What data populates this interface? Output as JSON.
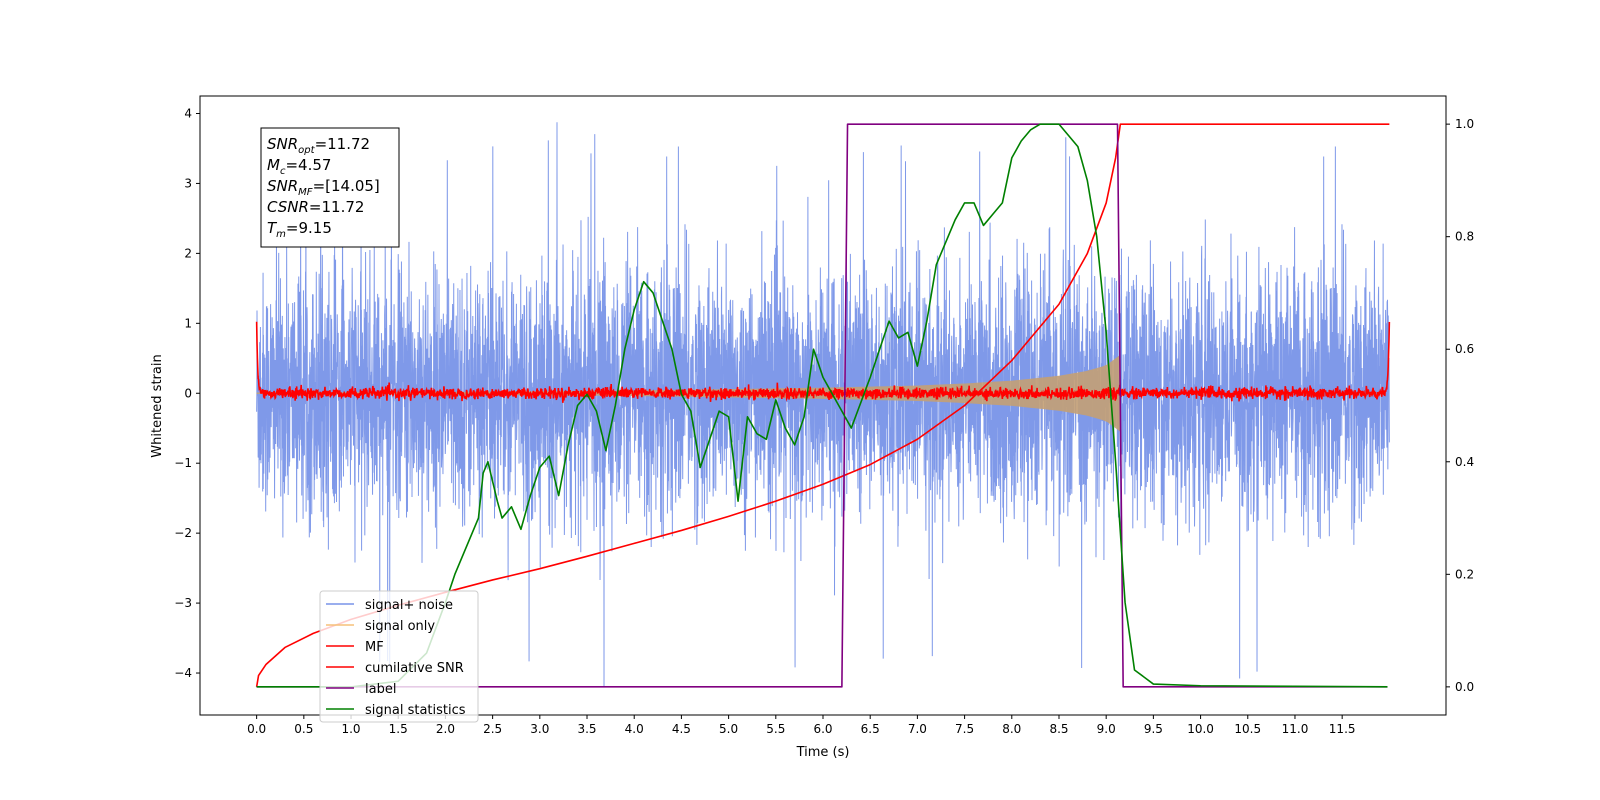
{
  "chart_data": {
    "type": "line",
    "xlabel": "Time (s)",
    "ylabel": "Whitened strain",
    "xlim": [
      -0.6,
      12.6
    ],
    "ylim": [
      -4.6,
      4.25
    ],
    "y2lim": [
      -0.05,
      1.05
    ],
    "x_ticks": [
      "0.0",
      "0.5",
      "1.0",
      "1.5",
      "2.0",
      "2.5",
      "3.0",
      "3.5",
      "4.0",
      "4.5",
      "5.0",
      "5.5",
      "6.0",
      "6.5",
      "7.0",
      "7.5",
      "8.0",
      "8.5",
      "9.0",
      "9.5",
      "10.0",
      "10.5",
      "11.0",
      "11.5"
    ],
    "x_tick_values": [
      0.0,
      0.5,
      1.0,
      1.5,
      2.0,
      2.5,
      3.0,
      3.5,
      4.0,
      4.5,
      5.0,
      5.5,
      6.0,
      6.5,
      7.0,
      7.5,
      8.0,
      8.5,
      9.0,
      9.5,
      10.0,
      10.5,
      11.0,
      11.5
    ],
    "y_ticks": [
      "4",
      "3",
      "2",
      "1",
      "0",
      "−1",
      "−2",
      "−3",
      "−4"
    ],
    "y_tick_values": [
      4,
      3,
      2,
      1,
      0,
      -1,
      -2,
      -3,
      -4
    ],
    "y2_ticks": [
      "1.0",
      "0.8",
      "0.6",
      "0.4",
      "0.2",
      "0.0"
    ],
    "y2_tick_values": [
      1.0,
      0.8,
      0.6,
      0.4,
      0.2,
      0.0
    ],
    "legend": [
      {
        "name": "signal+ noise",
        "color": "#7893e8"
      },
      {
        "name": "signal only",
        "color": "#f5c07a"
      },
      {
        "name": "MF",
        "color": "#ff0000"
      },
      {
        "name": "cumilative SNR",
        "color": "#ff0000"
      },
      {
        "name": "label",
        "color": "#800080"
      },
      {
        "name": "signal statistics",
        "color": "#008000"
      }
    ],
    "legend_position": "lower-left",
    "annotation": [
      {
        "base": "SNR",
        "sub": "opt",
        "value": "=11.72"
      },
      {
        "base": "M",
        "sub": "c",
        "value": "=4.57"
      },
      {
        "base": "SNR",
        "sub": "MF",
        "value": "=[14.05]"
      },
      {
        "base": "CSNR",
        "sub": "",
        "value": "=11.72"
      },
      {
        "base": "T",
        "sub": "m",
        "value": "=9.15"
      }
    ],
    "series": [
      {
        "name": "label",
        "axis": "right",
        "color": "#800080",
        "x": [
          0.0,
          6.2,
          6.26,
          9.12,
          9.18,
          11.98
        ],
        "y": [
          0.0,
          0.0,
          1.0,
          1.0,
          0.0,
          0.0
        ]
      },
      {
        "name": "cumilative SNR",
        "axis": "right",
        "color": "#ff0000",
        "x": [
          0.0,
          0.02,
          0.1,
          0.3,
          0.6,
          1.0,
          1.5,
          2.0,
          2.5,
          3.0,
          3.5,
          4.0,
          4.5,
          5.0,
          5.5,
          6.0,
          6.5,
          7.0,
          7.5,
          8.0,
          8.5,
          8.8,
          9.0,
          9.1,
          9.15,
          9.5,
          10.0,
          11.0,
          12.0
        ],
        "y": [
          0.0,
          0.02,
          0.04,
          0.07,
          0.095,
          0.12,
          0.145,
          0.168,
          0.19,
          0.21,
          0.232,
          0.255,
          0.278,
          0.303,
          0.33,
          0.36,
          0.395,
          0.44,
          0.5,
          0.58,
          0.68,
          0.77,
          0.86,
          0.94,
          1.0,
          1.0,
          1.0,
          1.0,
          1.0
        ]
      },
      {
        "name": "signal statistics",
        "axis": "right",
        "color": "#008000",
        "x": [
          0.0,
          1.0,
          1.5,
          1.8,
          2.0,
          2.1,
          2.2,
          2.3,
          2.35,
          2.4,
          2.45,
          2.55,
          2.6,
          2.7,
          2.8,
          2.9,
          3.0,
          3.1,
          3.2,
          3.3,
          3.4,
          3.5,
          3.6,
          3.7,
          3.8,
          3.9,
          4.0,
          4.1,
          4.2,
          4.3,
          4.4,
          4.5,
          4.6,
          4.7,
          4.8,
          4.9,
          5.0,
          5.1,
          5.2,
          5.3,
          5.4,
          5.5,
          5.6,
          5.7,
          5.8,
          5.9,
          6.0,
          6.1,
          6.3,
          6.5,
          6.6,
          6.7,
          6.8,
          6.9,
          7.0,
          7.1,
          7.2,
          7.3,
          7.4,
          7.5,
          7.6,
          7.7,
          7.8,
          7.9,
          8.0,
          8.1,
          8.2,
          8.3,
          8.4,
          8.5,
          8.6,
          8.7,
          8.8,
          8.9,
          9.0,
          9.1,
          9.2,
          9.3,
          9.5,
          10.0,
          11.0,
          11.98
        ],
        "y": [
          0.0,
          0.0,
          0.01,
          0.06,
          0.15,
          0.2,
          0.24,
          0.28,
          0.3,
          0.38,
          0.4,
          0.33,
          0.3,
          0.32,
          0.28,
          0.34,
          0.39,
          0.41,
          0.34,
          0.43,
          0.5,
          0.52,
          0.49,
          0.42,
          0.5,
          0.6,
          0.67,
          0.72,
          0.7,
          0.65,
          0.6,
          0.52,
          0.49,
          0.39,
          0.44,
          0.49,
          0.48,
          0.33,
          0.48,
          0.45,
          0.44,
          0.51,
          0.46,
          0.43,
          0.48,
          0.6,
          0.55,
          0.52,
          0.46,
          0.55,
          0.6,
          0.65,
          0.62,
          0.63,
          0.57,
          0.65,
          0.75,
          0.79,
          0.83,
          0.86,
          0.86,
          0.82,
          0.84,
          0.86,
          0.94,
          0.97,
          0.99,
          1.0,
          1.0,
          1.0,
          0.98,
          0.96,
          0.9,
          0.8,
          0.63,
          0.4,
          0.15,
          0.03,
          0.005,
          0.002,
          0.001,
          0.0
        ]
      },
      {
        "name": "signal only",
        "axis": "left",
        "color": "#c4a074",
        "envelope": {
          "x": [
            0.0,
            2.0,
            4.0,
            5.0,
            6.0,
            7.0,
            7.5,
            8.0,
            8.5,
            8.8,
            9.0,
            9.1,
            9.15
          ],
          "amp": [
            0.01,
            0.02,
            0.04,
            0.06,
            0.08,
            0.11,
            0.14,
            0.18,
            0.25,
            0.32,
            0.4,
            0.5,
            0.55
          ]
        }
      },
      {
        "name": "signal+ noise",
        "axis": "left",
        "color": "#7893e8",
        "noise": {
          "t0": 0.0,
          "t1": 12.0,
          "mean": 0.0,
          "std": 0.85,
          "clip_low": -4.2,
          "clip_high": 3.9
        }
      },
      {
        "name": "MF",
        "axis": "left",
        "color": "#ff0000",
        "noise": {
          "t0": 0.0,
          "t1": 12.0,
          "mean": 0.0,
          "std": 0.04,
          "edge_high": 1.0
        }
      }
    ]
  }
}
